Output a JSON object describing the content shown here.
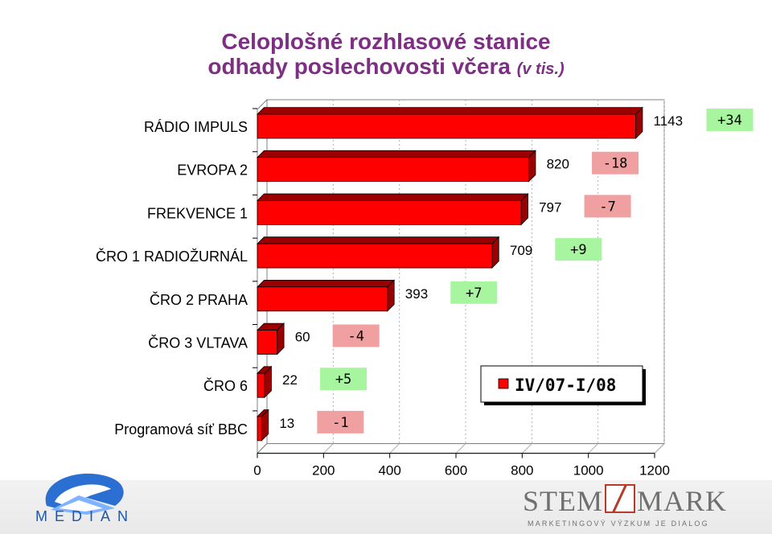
{
  "header": {
    "title_line1": "Celoplošné rozhlasové stanice",
    "title_line2": "odhady poslechovosti včera",
    "title_unit": "(v tis.)"
  },
  "chart_data": {
    "type": "bar",
    "orientation": "horizontal",
    "categories": [
      "RÁDIO IMPULS",
      "EVROPA 2",
      "FREKVENCE 1",
      "ČRO 1 RADIOŽURNÁL",
      "ČRO 2 PRAHA",
      "ČRO 3 VLTAVA",
      "ČRO 6",
      "Programová síť BBC"
    ],
    "series": [
      {
        "name": "IV/07-I/08",
        "values": [
          1143,
          820,
          797,
          709,
          393,
          60,
          22,
          13
        ]
      }
    ],
    "changes": [
      "+34",
      "-18",
      "-7",
      "+9",
      "+7",
      "-4",
      "+5",
      "-1"
    ],
    "change_colors": {
      "positive": "#a8f5a0",
      "negative": "#f0a0a0"
    },
    "bar_color": "#ff0000",
    "bar_side_color": "#9b0000",
    "xlim": [
      0,
      1200
    ],
    "xticks": [
      "0",
      "200",
      "400",
      "600",
      "800",
      "1000",
      "1200"
    ],
    "legend_position": "bottom-right",
    "grid": "vertical-dashed"
  },
  "footer": {
    "median_logo_text": "MEDIAN",
    "stem_logo_left": "STEM",
    "stem_logo_right": "MARK",
    "stem_tagline": "MARKETINGOVÝ VÝZKUM JE DIALOG"
  }
}
